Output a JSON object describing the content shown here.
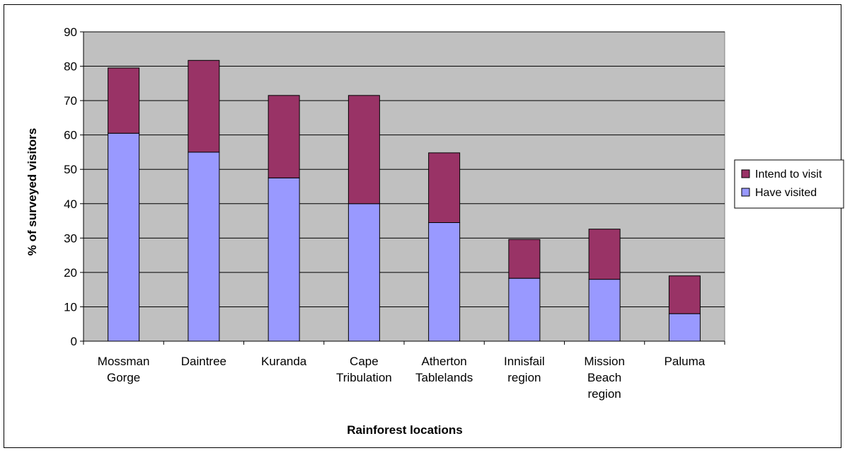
{
  "chart_data": {
    "type": "bar",
    "stacked": true,
    "title": "",
    "xlabel": "Rainforest locations",
    "ylabel": "% of surveyed visitors",
    "ylim": [
      0,
      90
    ],
    "yticks": [
      0,
      10,
      20,
      30,
      40,
      50,
      60,
      70,
      80,
      90
    ],
    "grid": true,
    "legend_position": "right",
    "categories": [
      [
        "Mossman",
        "Gorge"
      ],
      [
        "Daintree"
      ],
      [
        "Kuranda"
      ],
      [
        "Cape",
        "Tribulation"
      ],
      [
        "Atherton",
        "Tablelands"
      ],
      [
        "Innisfail",
        "region"
      ],
      [
        "Mission",
        "Beach",
        "region"
      ],
      [
        "Paluma"
      ]
    ],
    "series": [
      {
        "name": "Have visited",
        "color": "#9999ff",
        "values": [
          60.5,
          55,
          47.5,
          40,
          34.5,
          18.3,
          18,
          8
        ]
      },
      {
        "name": "Intend to visit",
        "color": "#993366",
        "values": [
          19,
          26.7,
          24,
          31.5,
          20.3,
          11.3,
          14.6,
          11
        ]
      }
    ],
    "legend_order": [
      "Intend to visit",
      "Have visited"
    ],
    "plot_background": "#c0c0c0"
  }
}
